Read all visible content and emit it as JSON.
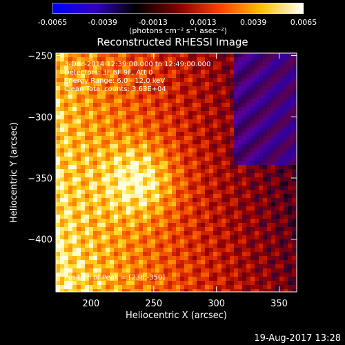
{
  "colorbar": {
    "ticks": [
      "-0.0065",
      "-0.0039",
      "-0.0013",
      "0.0013",
      "0.0039",
      "0.0065"
    ],
    "unit_label": "(photons cm⁻² s⁻¹ asec⁻²)",
    "colors": [
      "#0000ff",
      "#3000c0",
      "#000000",
      "#800000",
      "#ff4000",
      "#ffc000",
      "#ffffff"
    ]
  },
  "chart_data": {
    "type": "heatmap",
    "title": "Reconstructed RHESSI Image",
    "xlabel": "Heliocentric X (arcsec)",
    "ylabel": "Heliocentric Y (arcsec)",
    "xlim": [
      172,
      364
    ],
    "ylim": [
      -443,
      -248
    ],
    "xticks": [
      200,
      250,
      300,
      350
    ],
    "yticks": [
      -250,
      -300,
      -350,
      -400
    ],
    "xtick_labels": [
      "200",
      "250",
      "300",
      "350"
    ],
    "ytick_labels": [
      "−250",
      "−300",
      "−350",
      "−400"
    ],
    "value_range": [
      -0.0065,
      0.0065
    ],
    "peak": [
      238,
      -350
    ],
    "annotations": {
      "time": "3-Dec-2014 12:39:00.000 to 12:49:00.000",
      "detectors": "Detectors: 3F 6F 9F, Att 0",
      "energy": "Energy Range: 6.0 - 12.0 keV",
      "clean": "Clean      Total counts: 3.63E+04",
      "peak_label": "Position of Peak = [238,-350]"
    }
  },
  "footer": {
    "timestamp": "19-Aug-2017 13:28"
  }
}
